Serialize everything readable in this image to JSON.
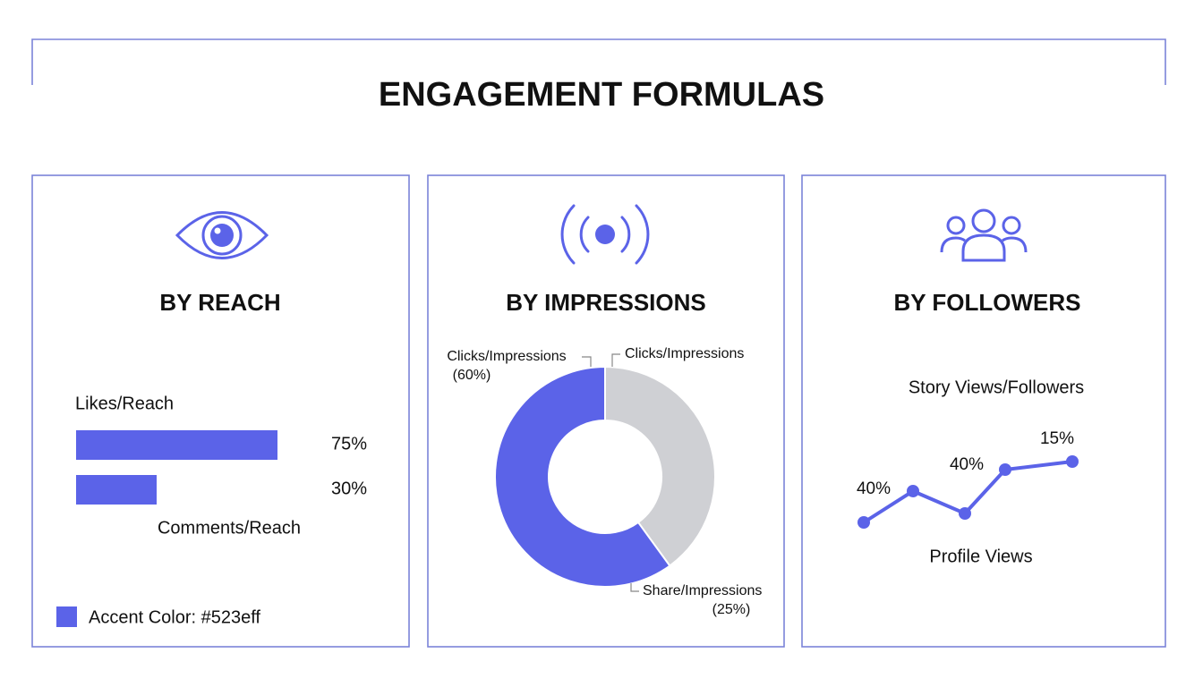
{
  "title": "ENGAGEMENT FORMULAS",
  "chart_data": [
    {
      "type": "bar",
      "title": "BY REACH",
      "orientation": "horizontal",
      "categories": [
        "Likes/Reach",
        "Comments/Reach"
      ],
      "values": [
        75,
        30
      ],
      "value_labels": [
        "75%",
        "30%"
      ],
      "color": "#5b63e8",
      "xlim": [
        0,
        100
      ],
      "legend_note": "Accent Color: #523eff"
    },
    {
      "type": "pie",
      "title": "BY IMPRESSIONS",
      "donut": true,
      "categories": [
        "Clicks/Impressions",
        "Clicks/Impressions"
      ],
      "values": [
        40,
        60
      ],
      "value_labels": [
        null,
        "(60%)"
      ],
      "colors": [
        "#cfd0d4",
        "#5b63e8"
      ],
      "annotation": {
        "text": "Share/Impressions",
        "value_label": "(25%)"
      }
    },
    {
      "type": "line",
      "title": "BY FOLLOWERS",
      "subtitle": "Story Views/Followers",
      "x_label": "Profile Views",
      "categories": [
        null,
        null,
        null,
        null,
        null
      ],
      "values": [
        16,
        51,
        26,
        75,
        84
      ],
      "ylim": [
        0,
        100
      ],
      "color": "#5b63e8",
      "annotations": [
        "40%",
        "40%",
        "15%"
      ]
    }
  ]
}
